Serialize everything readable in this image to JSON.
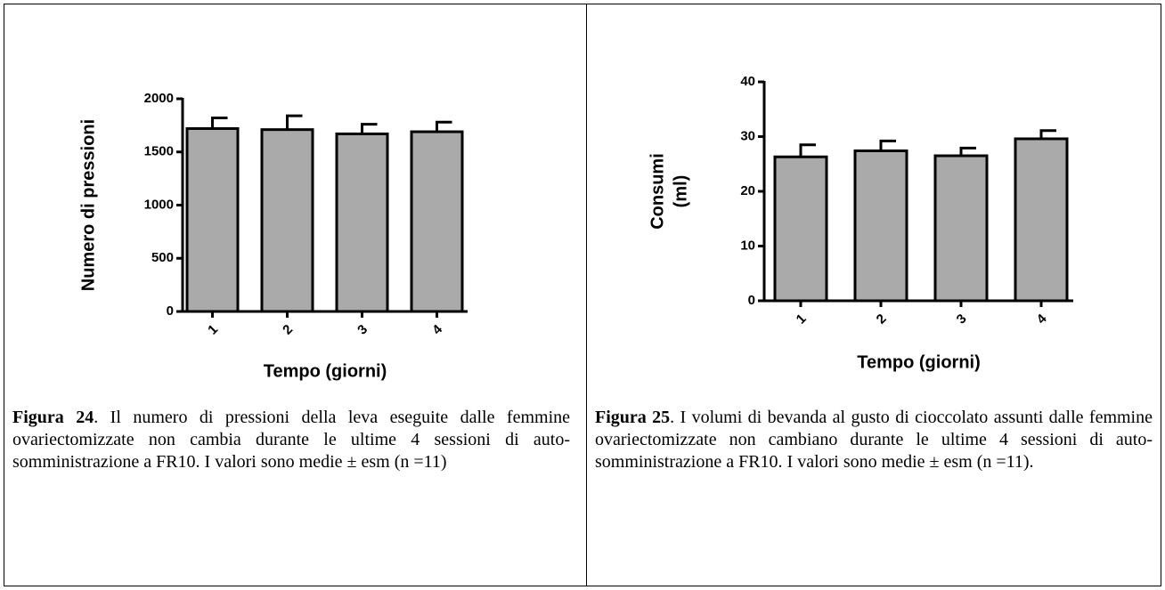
{
  "chart_data": [
    {
      "type": "bar",
      "ylabel": "Numero di pressioni",
      "xlabel": "Tempo (giorni)",
      "categories": [
        "1",
        "2",
        "3",
        "4"
      ],
      "values": [
        1720,
        1710,
        1670,
        1690
      ],
      "errors": [
        100,
        130,
        90,
        90
      ],
      "color": "#aaaaaa",
      "ylim": [
        0,
        2000
      ],
      "yticks": [
        0,
        500,
        1000,
        1500,
        2000
      ],
      "caption": {
        "label": "Figura 24",
        "text": ". Il numero di pressioni della leva eseguite dalle femmine ovariectomizzate non cambia durante le ultime 4 sessioni di auto-somministrazione a FR10. I valori sono medie ± esm (n =11)"
      }
    },
    {
      "type": "bar",
      "ylabel": [
        "Consumi",
        "(ml)"
      ],
      "xlabel": "Tempo (giorni)",
      "categories": [
        "1",
        "2",
        "3",
        "4"
      ],
      "values": [
        26.3,
        27.4,
        26.5,
        29.6
      ],
      "errors": [
        2.2,
        1.8,
        1.4,
        1.5
      ],
      "color": "#aaaaaa",
      "ylim": [
        0,
        40
      ],
      "yticks": [
        0,
        10,
        20,
        30,
        40
      ],
      "caption": {
        "label": "Figura 25",
        "text": ". I volumi di bevanda al gusto di cioccolato assunti dalle femmine ovariectomizzate non cambiano durante le ultime 4 sessioni di auto-somministrazione a FR10. I valori sono medie ± esm (n =11)."
      }
    }
  ]
}
